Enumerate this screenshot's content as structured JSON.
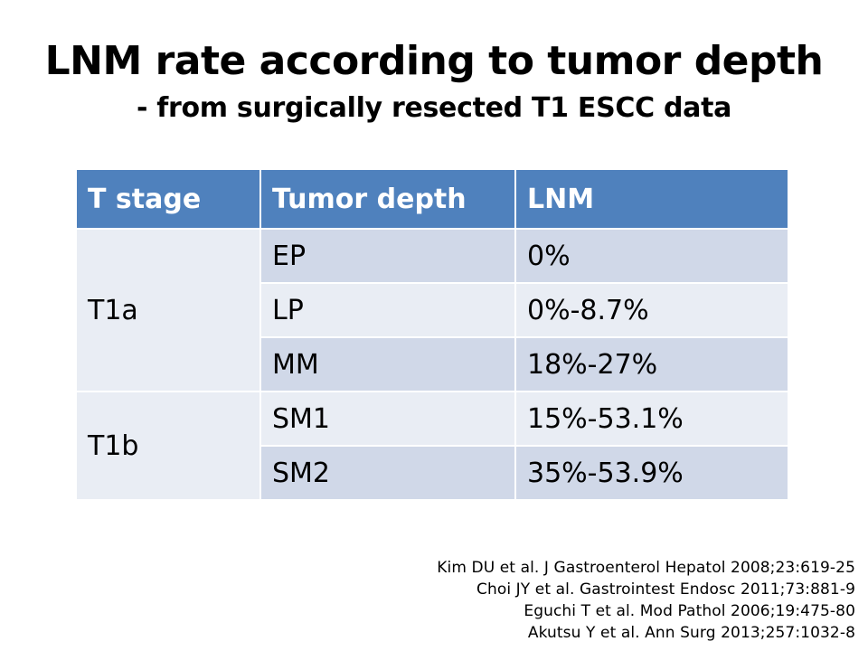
{
  "slide": {
    "title": "LNM rate according to tumor depth",
    "subtitle": "- from surgically resected T1 ESCC data"
  },
  "table": {
    "headers": [
      "T stage",
      "Tumor depth",
      "LNM"
    ],
    "stages": [
      {
        "label": "T1a",
        "rows": [
          {
            "depth": "EP",
            "lnm": "0%"
          },
          {
            "depth": "LP",
            "lnm": "0%-8.7%"
          },
          {
            "depth": "MM",
            "lnm": "18%-27%"
          }
        ]
      },
      {
        "label": "T1b",
        "rows": [
          {
            "depth": "SM1",
            "lnm": "15%-53.1%"
          },
          {
            "depth": "SM2",
            "lnm": "35%-53.9%"
          }
        ]
      }
    ]
  },
  "references": [
    "Kim DU et al. J Gastroenterol Hepatol 2008;23:619-25",
    "Choi JY et al. Gastrointest Endosc 2011;73:881-9",
    "Eguchi T et al. Mod Pathol 2006;19:475-80",
    "Akutsu Y et al. Ann Surg 2013;257:1032-8"
  ],
  "colors": {
    "header_bg": "#4f81bd",
    "row_dark": "#d0d8e8",
    "row_light": "#e9edf4"
  }
}
